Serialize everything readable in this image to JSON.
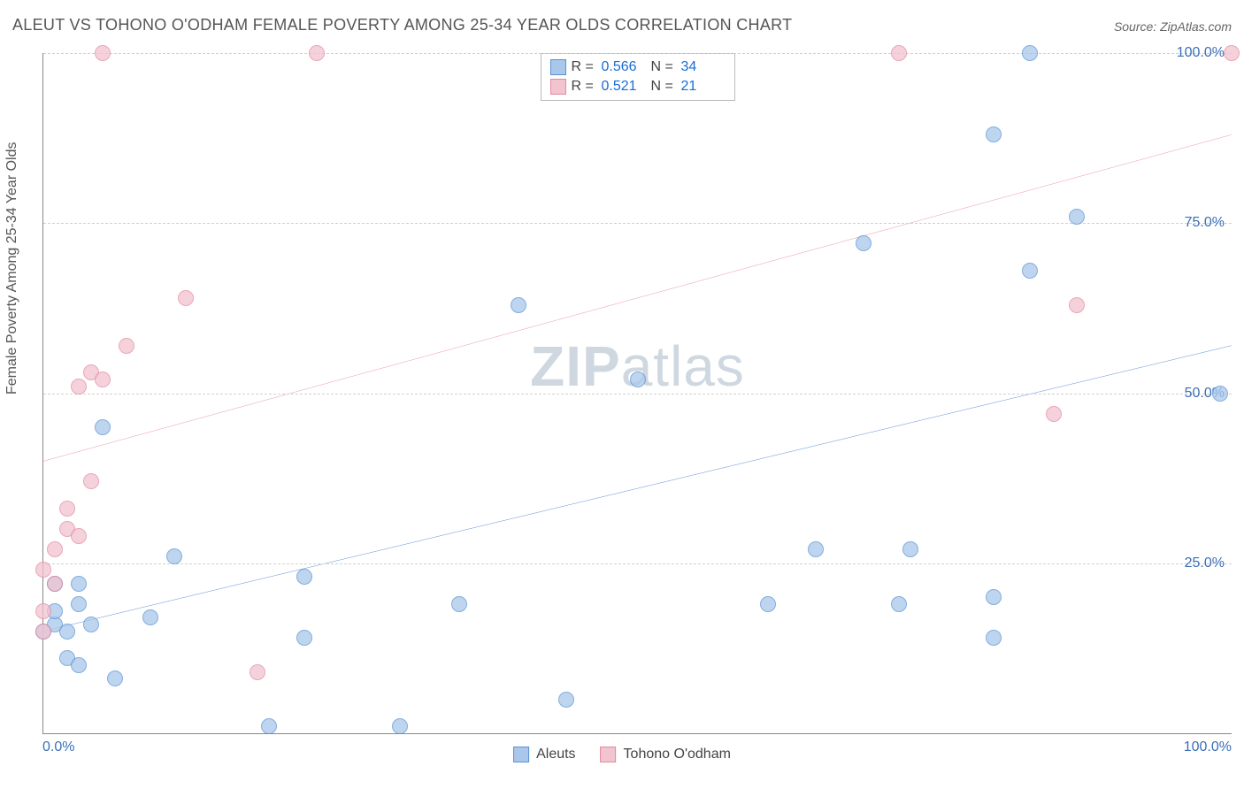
{
  "title": "ALEUT VS TOHONO O'ODHAM FEMALE POVERTY AMONG 25-34 YEAR OLDS CORRELATION CHART",
  "source": "Source: ZipAtlas.com",
  "watermark_a": "ZIP",
  "watermark_b": "atlas",
  "y_axis_title": "Female Poverty Among 25-34 Year Olds",
  "chart": {
    "type": "scatter",
    "xlim": [
      0,
      100
    ],
    "ylim": [
      0,
      100
    ],
    "x_ticks": [
      {
        "v": 0,
        "label": "0.0%"
      },
      {
        "v": 100,
        "label": "100.0%"
      }
    ],
    "y_ticks": [
      {
        "v": 25,
        "label": "25.0%"
      },
      {
        "v": 50,
        "label": "50.0%"
      },
      {
        "v": 75,
        "label": "75.0%"
      },
      {
        "v": 100,
        "label": "100.0%"
      }
    ],
    "background_color": "#ffffff",
    "grid_color": "#d0d0d0",
    "axis_color": "#888888",
    "tick_label_color": "#3b6fb5",
    "point_radius": 9,
    "point_fill_opacity": 0.35,
    "point_stroke_width": 1.5,
    "line_width": 2,
    "series": [
      {
        "id": "aleuts",
        "label": "Aleuts",
        "color_fill": "#a9c7ea",
        "color_stroke": "#5a92d4",
        "line_color": "#1f64c7",
        "R": "0.566",
        "N": "34",
        "trend": {
          "x1": 0,
          "y1": 15,
          "x2": 100,
          "y2": 57
        },
        "points": [
          {
            "x": 1,
            "y": 16
          },
          {
            "x": 1,
            "y": 18
          },
          {
            "x": 1,
            "y": 22
          },
          {
            "x": 2,
            "y": 11
          },
          {
            "x": 2,
            "y": 15
          },
          {
            "x": 3,
            "y": 10
          },
          {
            "x": 3,
            "y": 19
          },
          {
            "x": 3,
            "y": 22
          },
          {
            "x": 4,
            "y": 16
          },
          {
            "x": 5,
            "y": 45
          },
          {
            "x": 6,
            "y": 8
          },
          {
            "x": 9,
            "y": 17
          },
          {
            "x": 11,
            "y": 26
          },
          {
            "x": 19,
            "y": 1
          },
          {
            "x": 22,
            "y": 14
          },
          {
            "x": 22,
            "y": 23
          },
          {
            "x": 30,
            "y": 1
          },
          {
            "x": 35,
            "y": 19
          },
          {
            "x": 40,
            "y": 63
          },
          {
            "x": 44,
            "y": 5
          },
          {
            "x": 50,
            "y": 52
          },
          {
            "x": 61,
            "y": 19
          },
          {
            "x": 65,
            "y": 27
          },
          {
            "x": 72,
            "y": 19
          },
          {
            "x": 73,
            "y": 27
          },
          {
            "x": 69,
            "y": 72
          },
          {
            "x": 80,
            "y": 14
          },
          {
            "x": 80,
            "y": 20
          },
          {
            "x": 83,
            "y": 68
          },
          {
            "x": 80,
            "y": 88
          },
          {
            "x": 83,
            "y": 100
          },
          {
            "x": 87,
            "y": 76
          },
          {
            "x": 99,
            "y": 50
          },
          {
            "x": 0,
            "y": 15
          }
        ]
      },
      {
        "id": "tohono",
        "label": "Tohono O'odham",
        "color_fill": "#f2c4cf",
        "color_stroke": "#e389a0",
        "line_color": "#e26b88",
        "R": "0.521",
        "N": "21",
        "trend": {
          "x1": 0,
          "y1": 40,
          "x2": 100,
          "y2": 88
        },
        "points": [
          {
            "x": 0,
            "y": 15
          },
          {
            "x": 0,
            "y": 18
          },
          {
            "x": 0,
            "y": 24
          },
          {
            "x": 1,
            "y": 22
          },
          {
            "x": 1,
            "y": 27
          },
          {
            "x": 2,
            "y": 30
          },
          {
            "x": 2,
            "y": 33
          },
          {
            "x": 3,
            "y": 29
          },
          {
            "x": 3,
            "y": 51
          },
          {
            "x": 4,
            "y": 53
          },
          {
            "x": 4,
            "y": 37
          },
          {
            "x": 5,
            "y": 52
          },
          {
            "x": 5,
            "y": 100
          },
          {
            "x": 7,
            "y": 57
          },
          {
            "x": 12,
            "y": 64
          },
          {
            "x": 18,
            "y": 9
          },
          {
            "x": 23,
            "y": 100
          },
          {
            "x": 72,
            "y": 100
          },
          {
            "x": 85,
            "y": 47
          },
          {
            "x": 87,
            "y": 63
          },
          {
            "x": 100,
            "y": 100
          }
        ]
      }
    ]
  }
}
